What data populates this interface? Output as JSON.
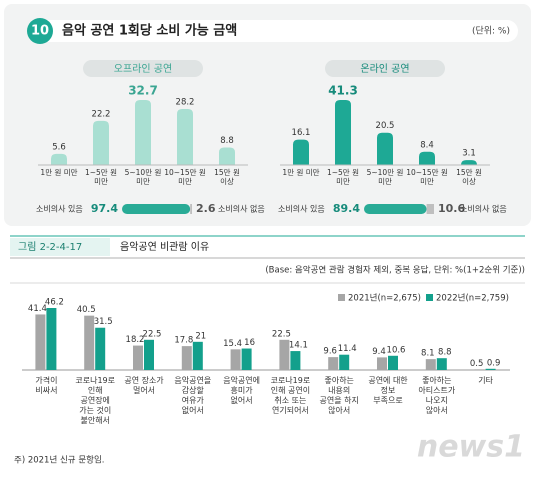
{
  "header": {
    "badge": "10",
    "title": "음악 공연 1회당 소비 가능 금액",
    "unit": "(단위: %)"
  },
  "chart_data": [
    {
      "type": "bar",
      "title": "오프라인 공연",
      "categories": [
        [
          "1만 원 미만"
        ],
        [
          "1~5만 원",
          "미만"
        ],
        [
          "5~10만 원",
          "미만"
        ],
        [
          "10~15만 원",
          "미만"
        ],
        [
          "15만 원",
          "이상"
        ]
      ],
      "values": [
        5.6,
        22.2,
        32.7,
        28.2,
        8.8
      ],
      "color": "#a9dfd2",
      "summary": {
        "labels": [
          "소비의사 있음",
          "소비의사 없음"
        ],
        "values": [
          97.4,
          2.6
        ],
        "colors": [
          "#29ab96",
          "#bfbfbf"
        ]
      }
    },
    {
      "type": "bar",
      "title": "온라인 공연",
      "categories": [
        [
          "1만 원 미만"
        ],
        [
          "1~5만 원",
          "미만"
        ],
        [
          "5~10만 원",
          "미만"
        ],
        [
          "10~15만 원",
          "미만"
        ],
        [
          "15만 원",
          "이상"
        ]
      ],
      "values": [
        16.1,
        41.3,
        20.5,
        8.4,
        3.1
      ],
      "color": "#1ea995",
      "summary": {
        "labels": [
          "소비의사 있음",
          "소비의사 없음"
        ],
        "values": [
          89.4,
          10.6
        ],
        "colors": [
          "#29ab96",
          "#bfbfbf"
        ]
      }
    },
    {
      "type": "grouped-bar",
      "figure_label": "그림 2-2-4-17",
      "title": "음악공연 비관람 이유",
      "note": "(Base: 음악공연 관람 경험자 제외, 중복 응답, 단위: %(1+2순위 기준))",
      "categories": [
        [
          "가격이",
          "비싸서"
        ],
        [
          "코로나19로",
          "인해",
          "공연장에",
          "가는 것이",
          "불안해서"
        ],
        [
          "공연 장소가",
          "멀어서"
        ],
        [
          "음악공연을",
          "감상할",
          "여유가",
          "없어서"
        ],
        [
          "음악공연에",
          "흥미가",
          "없어서"
        ],
        [
          "코로나19로",
          "인해 공연이",
          "취소 또는",
          "연기되어서"
        ],
        [
          "좋아하는",
          "내용의",
          "공연을 하지",
          "않아서"
        ],
        [
          "공연에 대한",
          "정보",
          "부족으로"
        ],
        [
          "좋아하는",
          "아티스트가",
          "나오지",
          "않아서"
        ],
        [
          "기타"
        ]
      ],
      "series": [
        {
          "name": "2021년(n=2,675)",
          "color": "#a6a6a6",
          "values": [
            41.4,
            40.5,
            18.2,
            17.8,
            15.4,
            22.5,
            9.6,
            9.4,
            8.1,
            0.5
          ]
        },
        {
          "name": "2022년(n=2,759)",
          "color": "#13a08c",
          "values": [
            46.2,
            31.5,
            22.5,
            21.0,
            16.0,
            14.1,
            11.4,
            10.6,
            8.8,
            0.9
          ]
        }
      ],
      "footnote": "주) 2021년 신규 문항임."
    }
  ],
  "watermark": "news1"
}
